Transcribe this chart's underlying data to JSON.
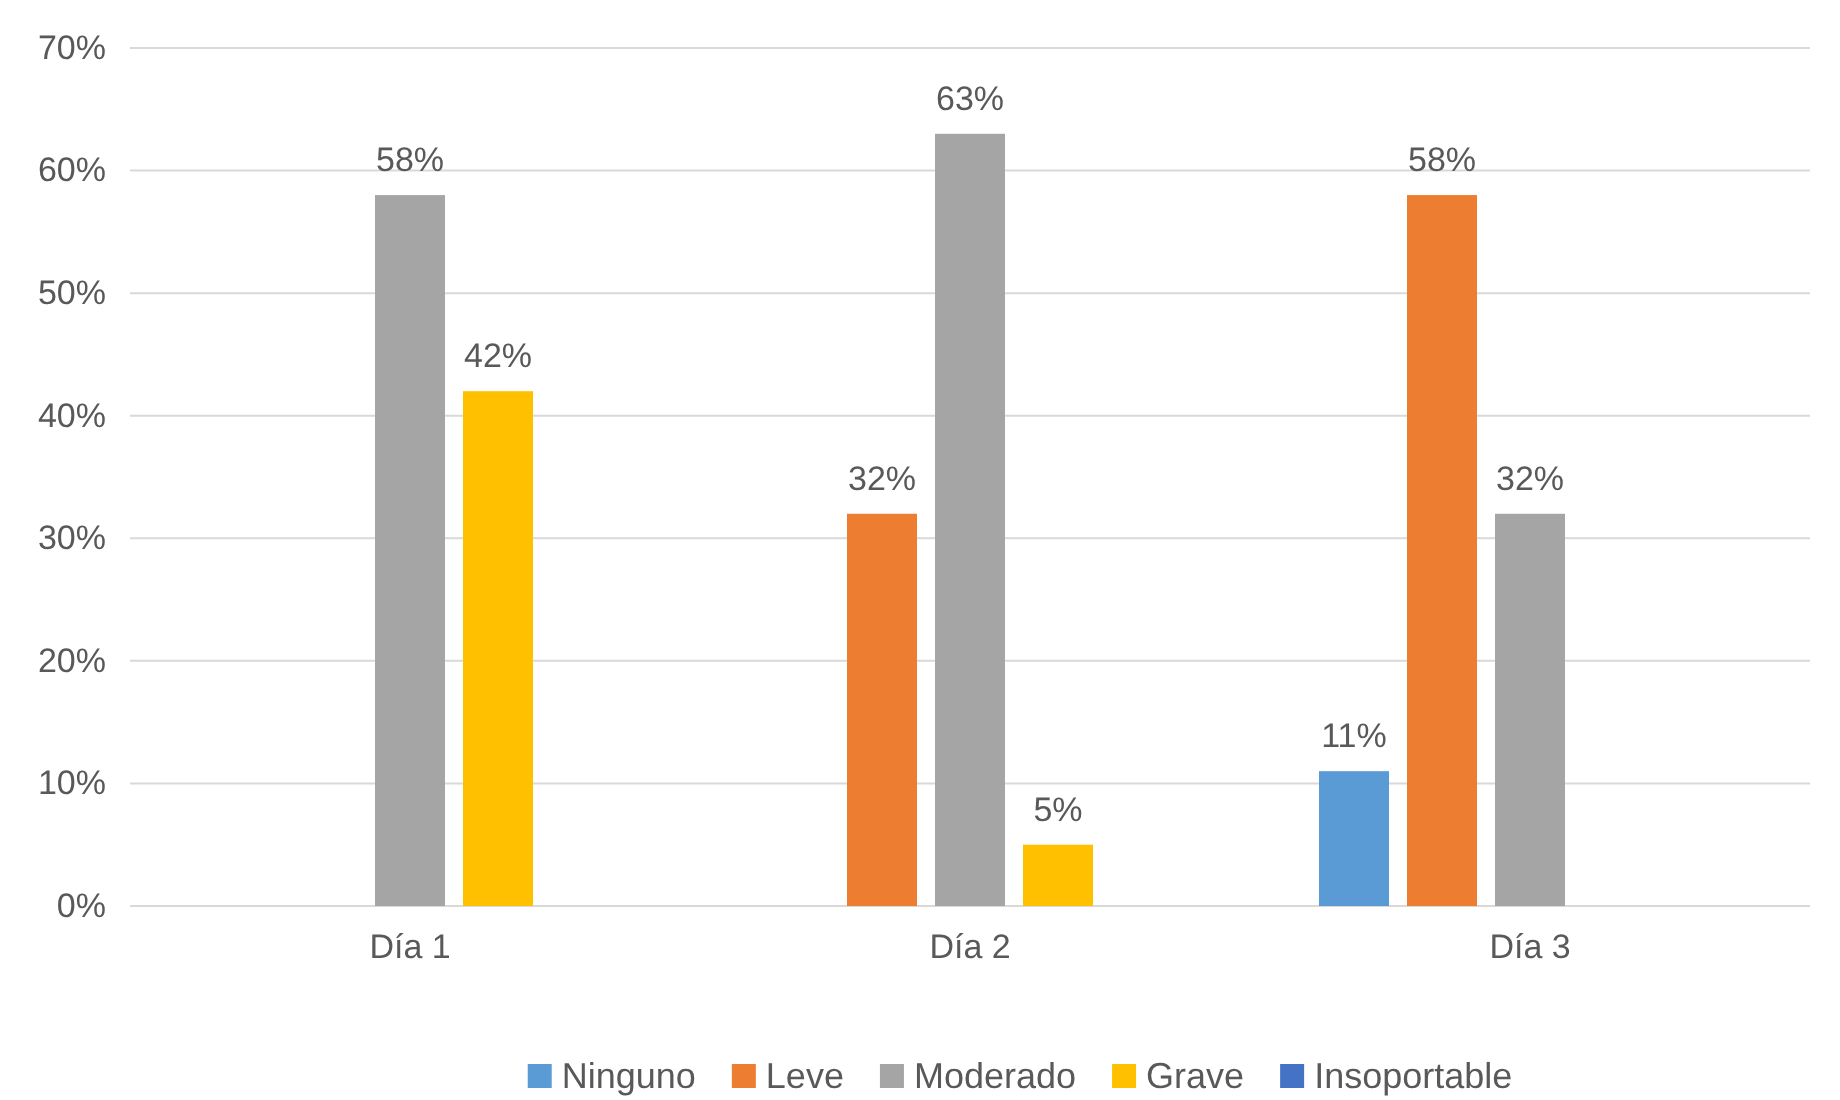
{
  "chart_data": {
    "type": "bar",
    "categories": [
      "Día 1",
      "Día 2",
      "Día 3"
    ],
    "series": [
      {
        "name": "Ninguno",
        "color": "#5b9bd5",
        "values": [
          null,
          null,
          11
        ],
        "value_labels": [
          null,
          null,
          "11%"
        ]
      },
      {
        "name": "Leve",
        "color": "#ed7d31",
        "values": [
          null,
          32,
          58
        ],
        "value_labels": [
          null,
          "32%",
          "58%"
        ]
      },
      {
        "name": "Moderado",
        "color": "#a5a5a5",
        "values": [
          58,
          63,
          32
        ],
        "value_labels": [
          "58%",
          "63%",
          "32%"
        ]
      },
      {
        "name": "Grave",
        "color": "#ffc000",
        "values": [
          42,
          5,
          null
        ],
        "value_labels": [
          "42%",
          "5%",
          null
        ]
      },
      {
        "name": "Insoportable",
        "color": "#4472c4",
        "values": [
          null,
          null,
          null
        ],
        "value_labels": [
          null,
          null,
          null
        ]
      }
    ],
    "ylim": [
      0,
      70
    ],
    "yticks": [
      {
        "value": 0,
        "label": "0%"
      },
      {
        "value": 10,
        "label": "10%"
      },
      {
        "value": 20,
        "label": "20%"
      },
      {
        "value": 30,
        "label": "30%"
      },
      {
        "value": 40,
        "label": "40%"
      },
      {
        "value": 50,
        "label": "50%"
      },
      {
        "value": 60,
        "label": "60%"
      },
      {
        "value": 70,
        "label": "70%"
      }
    ],
    "grid": "y",
    "legend": "bottom"
  }
}
